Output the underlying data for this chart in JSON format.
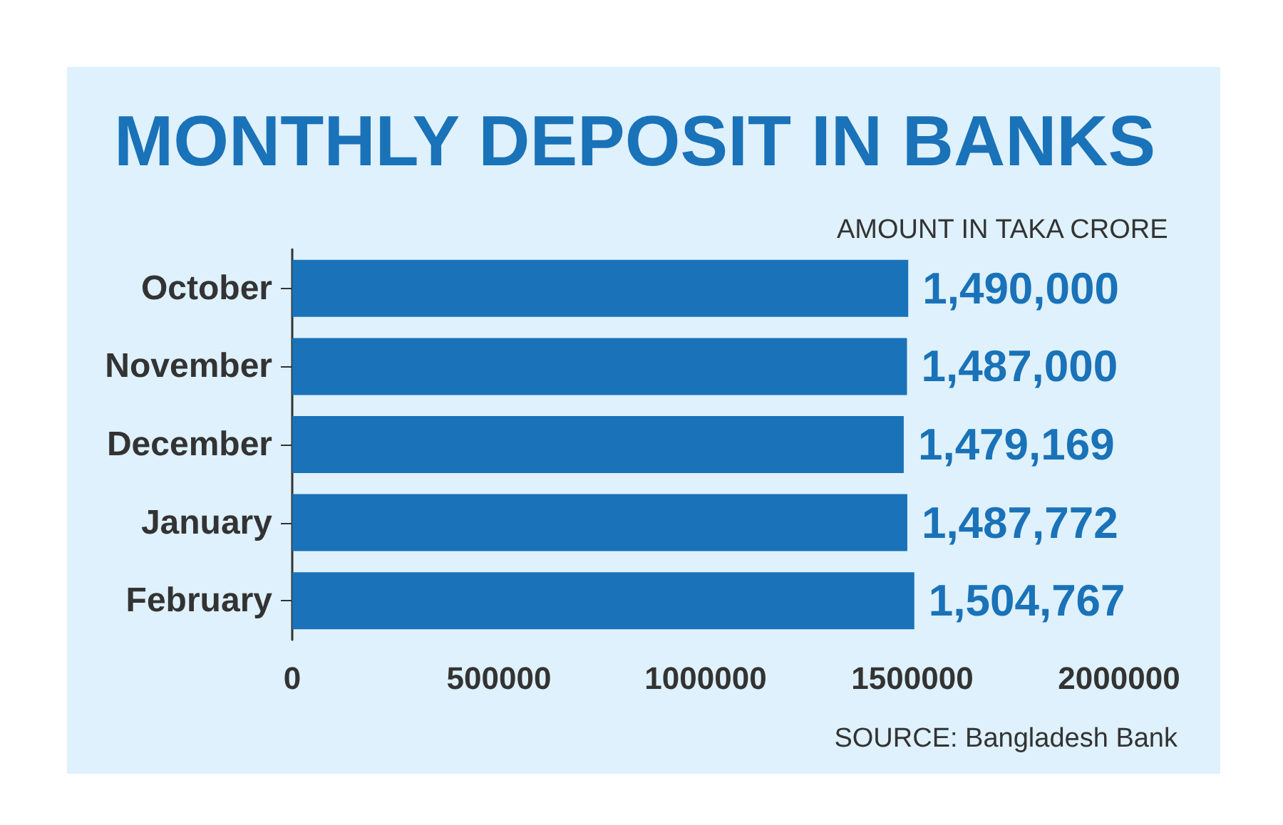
{
  "chart_data": {
    "type": "bar",
    "orientation": "horizontal",
    "title": "MONTHLY DEPOSIT IN BANKS",
    "subtitle": "AMOUNT IN TAKA CRORE",
    "categories": [
      "October",
      "November",
      "December",
      "January",
      "February"
    ],
    "values": [
      1490000,
      1487000,
      1479169,
      1487772,
      1504767
    ],
    "value_labels": [
      "1,490,000",
      "1,487,000",
      "1,479,169",
      "1,487,772",
      "1,504,767"
    ],
    "color": "#1a72b8",
    "xlim": [
      0,
      2000000
    ],
    "xticks": [
      0,
      500000,
      1000000,
      1500000,
      2000000
    ],
    "annotations": [
      "SOURCE: Bangladesh Bank"
    ]
  }
}
